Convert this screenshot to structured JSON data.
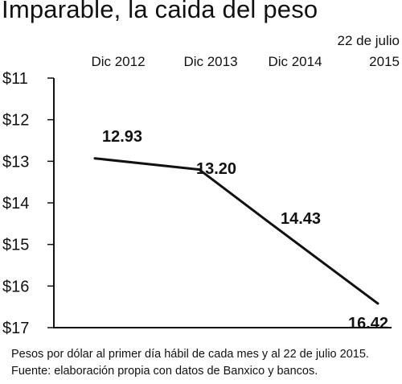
{
  "title": "Imparable, la caida del peso",
  "chart_data": {
    "type": "line",
    "categories": [
      "Dic 2012",
      "Dic 2013",
      "Dic 2014",
      "22 de julio 2015"
    ],
    "category_lines": [
      [
        "Dic 2012"
      ],
      [
        "Dic 2013"
      ],
      [
        "Dic 2014"
      ],
      [
        "22 de julio",
        "2015"
      ]
    ],
    "values": [
      12.93,
      13.2,
      14.43,
      16.42
    ],
    "value_labels": [
      "12.93",
      "13.20",
      "14.43",
      "16.42"
    ],
    "y_ticks": [
      "$11",
      "$12",
      "$13",
      "$14",
      "$15",
      "$16",
      "$17"
    ],
    "ylim": [
      11,
      17
    ],
    "y_inverted": true,
    "grid": false,
    "line_color": "#111111"
  },
  "footer": {
    "line1": "Pesos por dólar al primer día hábil de cada mes y al 22 de julio 2015.",
    "line2": "Fuente: elaboración propia con datos de Banxico y bancos."
  }
}
